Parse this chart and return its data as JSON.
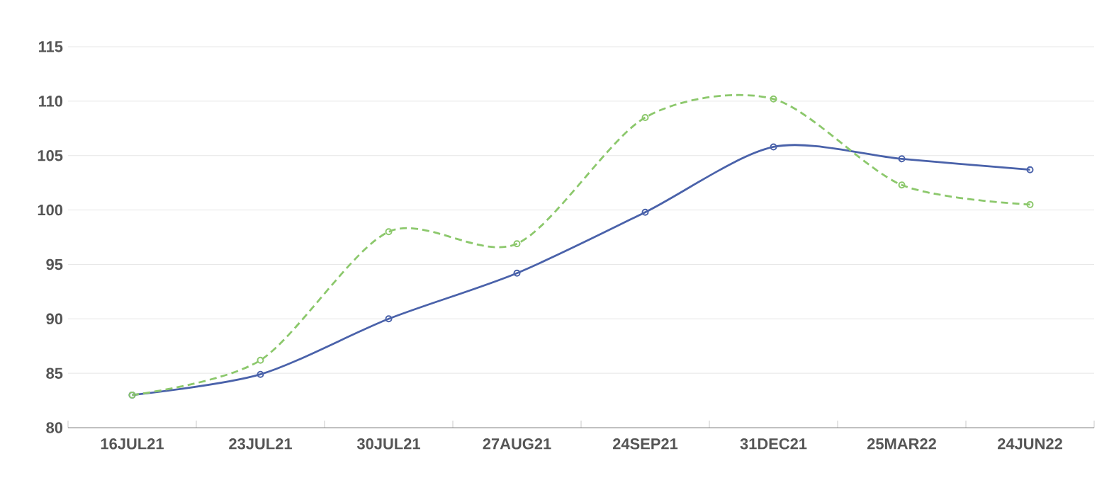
{
  "chart_data": {
    "type": "line",
    "categories": [
      "16JUL21",
      "23JUL21",
      "30JUL21",
      "27AUG21",
      "24SEP21",
      "31DEC21",
      "25MAR22",
      "24JUN22"
    ],
    "series": [
      {
        "color": "#4a62aa",
        "line_style": "solid",
        "values": [
          83.0,
          84.9,
          90.0,
          94.2,
          99.8,
          105.8,
          104.7,
          103.7
        ]
      },
      {
        "color": "#8cc86c",
        "line_style": "dashed",
        "values": [
          83.0,
          86.2,
          98.0,
          96.9,
          108.5,
          110.2,
          102.3,
          100.5
        ]
      }
    ],
    "ylim": [
      80,
      115
    ],
    "yticks": [
      80,
      85,
      90,
      95,
      100,
      105,
      110,
      115
    ],
    "grid": "y",
    "marker": "circle"
  }
}
